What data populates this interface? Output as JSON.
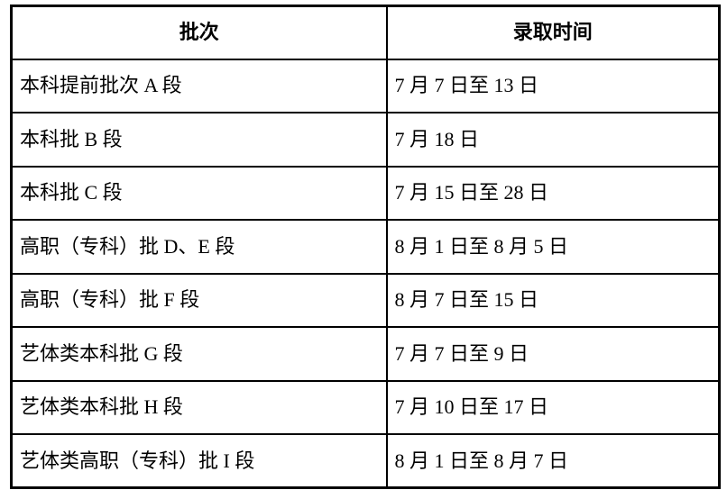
{
  "table": {
    "headers": [
      "批次",
      "录取时间"
    ],
    "rows": [
      {
        "batch": "本科提前批次 A 段",
        "time": "7 月 7 日至 13 日"
      },
      {
        "batch": "本科批 B 段",
        "time": "7 月 18 日"
      },
      {
        "batch": "本科批 C 段",
        "time": "7 月 15 日至 28 日"
      },
      {
        "batch": "高职（专科）批 D、E 段",
        "time": "8 月 1 日至 8 月 5 日"
      },
      {
        "batch": "高职（专科）批 F 段",
        "time": "8 月 7 日至 15 日"
      },
      {
        "batch": "艺体类本科批 G 段",
        "time": "7 月 7 日至 9 日"
      },
      {
        "batch": "艺体类本科批 H 段",
        "time": "7 月 10 日至 17 日"
      },
      {
        "batch": "艺体类高职（专科）批 I 段",
        "time": "8 月 1 日至 8 月 7 日"
      }
    ],
    "colors": {
      "border": "#000000",
      "text": "#000000",
      "background": "#ffffff"
    }
  }
}
